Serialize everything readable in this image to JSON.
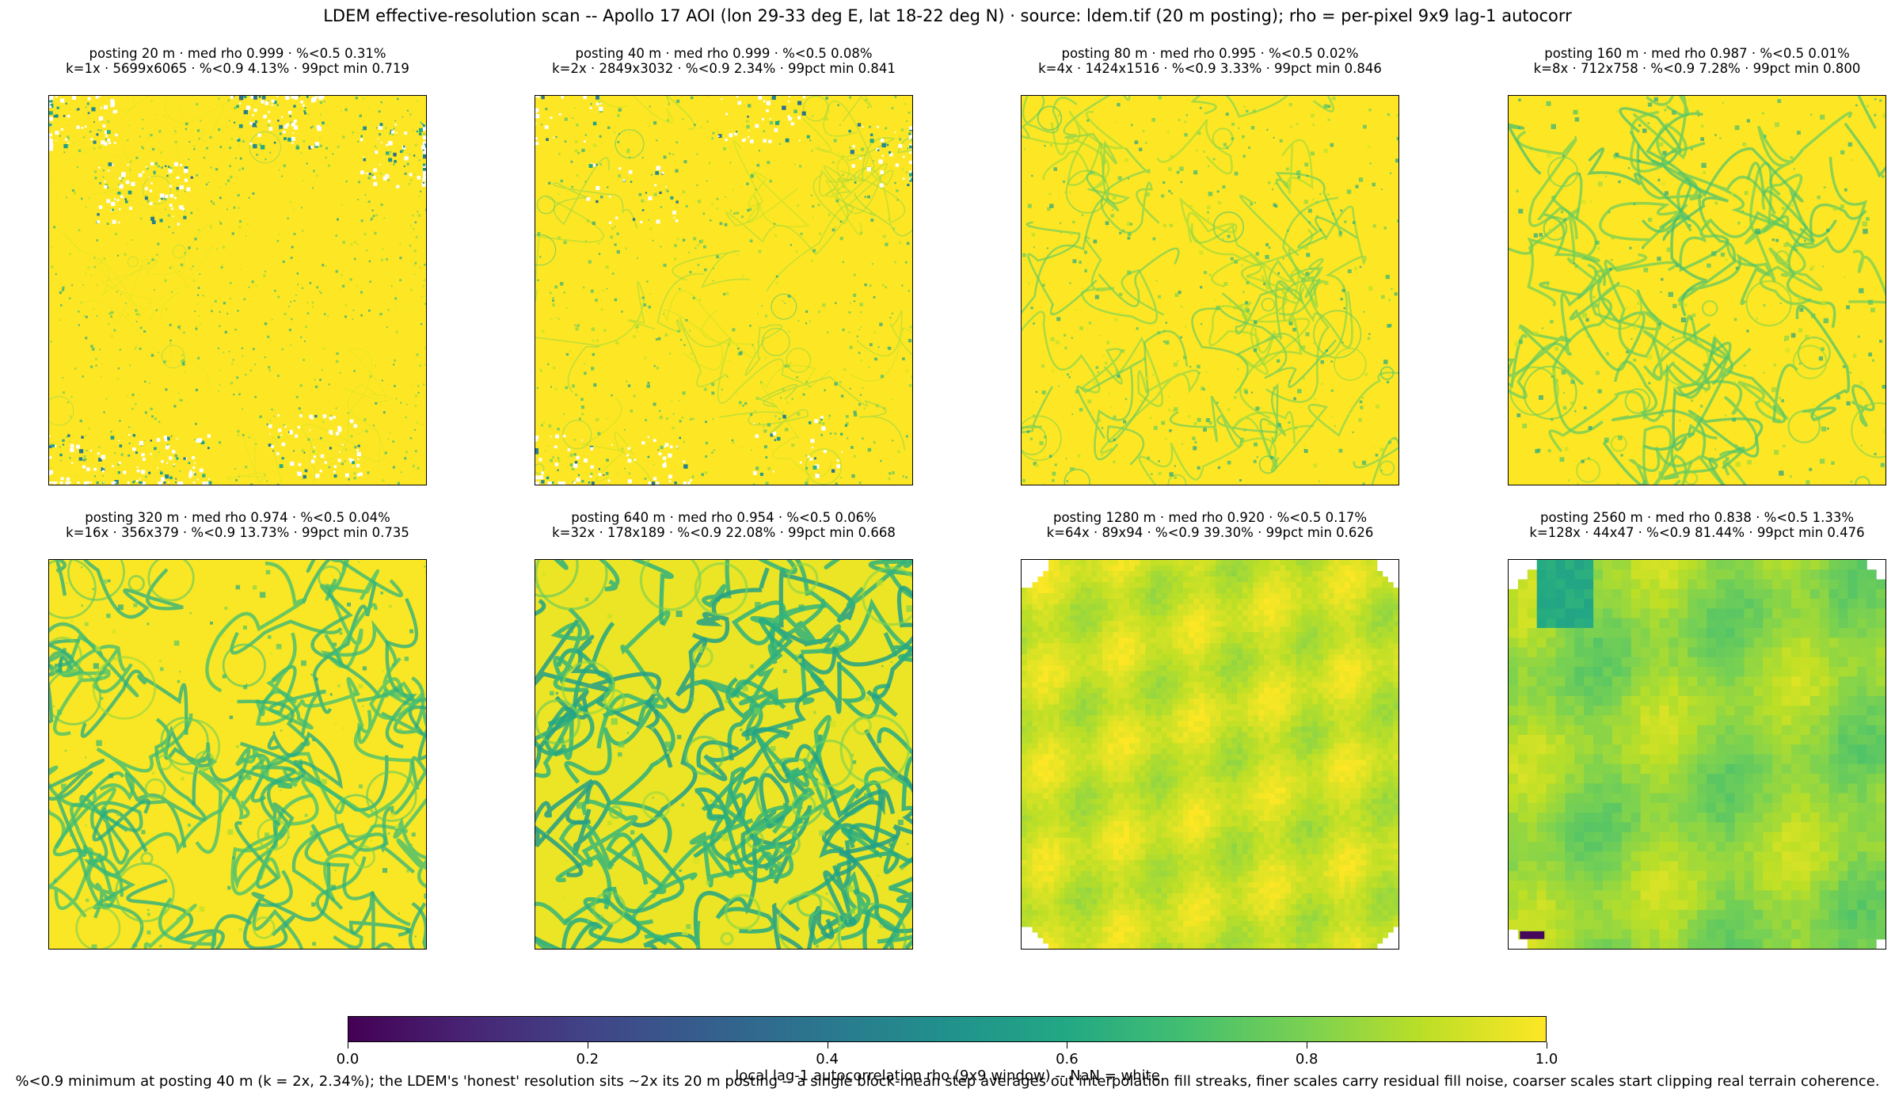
{
  "figure": {
    "suptitle": "LDEM effective-resolution scan -- Apollo 17 AOI (lon 29-33 deg E, lat 18-22 deg N)  ·  source: ldem.tif (20 m posting); rho = per-pixel 9x9 lag-1 autocorr",
    "footnote": "%<0.9 minimum at posting 40 m (k = 2x, 2.34%); the LDEM's 'honest' resolution sits ~2x its 20 m posting -- a single block-mean step averages out interpolation fill streaks, finer scales carry residual fill noise, coarser scales start clipping real terrain coherence.",
    "nan_color": "#ffffff"
  },
  "colorbar": {
    "label": "local lag-1 autocorrelation rho (9x9 window)  --  NaN = white",
    "colormap": "viridis",
    "range": [
      0.0,
      1.0
    ],
    "ticks": [
      "0.0",
      "0.2",
      "0.4",
      "0.6",
      "0.8",
      "1.0"
    ],
    "tick_values": [
      0.0,
      0.2,
      0.4,
      0.6,
      0.8,
      1.0
    ]
  },
  "chart_data": {
    "type": "heatmap",
    "colormap": "viridis",
    "vmin": 0.0,
    "vmax": 1.0,
    "panels": [
      {
        "title_line1": "posting 20 m  ·  med rho 0.999  ·  %<0.5 0.31%",
        "title_line2": "k=1x  ·  5699x6065  ·  %<0.9 4.13%  ·  99pct min 0.719",
        "posting_m": 20,
        "k": 1,
        "shape": "5699x6065",
        "med_rho": 0.999,
        "pct_below_0_5": 0.31,
        "pct_below_0_9": 4.13,
        "pct99_min": 0.719
      },
      {
        "title_line1": "posting 40 m  ·  med rho 0.999  ·  %<0.5 0.08%",
        "title_line2": "k=2x  ·  2849x3032  ·  %<0.9 2.34%  ·  99pct min 0.841",
        "posting_m": 40,
        "k": 2,
        "shape": "2849x3032",
        "med_rho": 0.999,
        "pct_below_0_5": 0.08,
        "pct_below_0_9": 2.34,
        "pct99_min": 0.841
      },
      {
        "title_line1": "posting 80 m  ·  med rho 0.995  ·  %<0.5 0.02%",
        "title_line2": "k=4x  ·  1424x1516  ·  %<0.9 3.33%  ·  99pct min 0.846",
        "posting_m": 80,
        "k": 4,
        "shape": "1424x1516",
        "med_rho": 0.995,
        "pct_below_0_5": 0.02,
        "pct_below_0_9": 3.33,
        "pct99_min": 0.846
      },
      {
        "title_line1": "posting 160 m  ·  med rho 0.987  ·  %<0.5 0.01%",
        "title_line2": "k=8x  ·  712x758  ·  %<0.9 7.28%  ·  99pct min 0.800",
        "posting_m": 160,
        "k": 8,
        "shape": "712x758",
        "med_rho": 0.987,
        "pct_below_0_5": 0.01,
        "pct_below_0_9": 7.28,
        "pct99_min": 0.8
      },
      {
        "title_line1": "posting 320 m  ·  med rho 0.974  ·  %<0.5 0.04%",
        "title_line2": "k=16x  ·  356x379  ·  %<0.9 13.73%  ·  99pct min 0.735",
        "posting_m": 320,
        "k": 16,
        "shape": "356x379",
        "med_rho": 0.974,
        "pct_below_0_5": 0.04,
        "pct_below_0_9": 13.73,
        "pct99_min": 0.735
      },
      {
        "title_line1": "posting 640 m  ·  med rho 0.954  ·  %<0.5 0.06%",
        "title_line2": "k=32x  ·  178x189  ·  %<0.9 22.08%  ·  99pct min 0.668",
        "posting_m": 640,
        "k": 32,
        "shape": "178x189",
        "med_rho": 0.954,
        "pct_below_0_5": 0.06,
        "pct_below_0_9": 22.08,
        "pct99_min": 0.668
      },
      {
        "title_line1": "posting 1280 m  ·  med rho 0.920  ·  %<0.5 0.17%",
        "title_line2": "k=64x  ·  89x94  ·  %<0.9 39.30%  ·  99pct min 0.626",
        "posting_m": 1280,
        "k": 64,
        "shape": "89x94",
        "med_rho": 0.92,
        "pct_below_0_5": 0.17,
        "pct_below_0_9": 39.3,
        "pct99_min": 0.626
      },
      {
        "title_line1": "posting 2560 m  ·  med rho 0.838  ·  %<0.5 1.33%",
        "title_line2": "k=128x  ·  44x47  ·  %<0.9 81.44%  ·  99pct min 0.476",
        "posting_m": 2560,
        "k": 128,
        "shape": "44x47",
        "med_rho": 0.838,
        "pct_below_0_5": 1.33,
        "pct_below_0_9": 81.44,
        "pct99_min": 0.476
      }
    ]
  }
}
